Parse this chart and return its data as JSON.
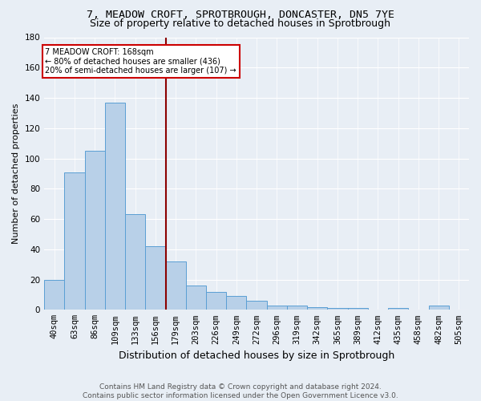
{
  "title1": "7, MEADOW CROFT, SPROTBROUGH, DONCASTER, DN5 7YE",
  "title2": "Size of property relative to detached houses in Sprotbrough",
  "xlabel": "Distribution of detached houses by size in Sprotbrough",
  "ylabel": "Number of detached properties",
  "bar_labels": [
    "40sqm",
    "63sqm",
    "86sqm",
    "109sqm",
    "133sqm",
    "156sqm",
    "179sqm",
    "203sqm",
    "226sqm",
    "249sqm",
    "272sqm",
    "296sqm",
    "319sqm",
    "342sqm",
    "365sqm",
    "389sqm",
    "412sqm",
    "435sqm",
    "458sqm",
    "482sqm",
    "505sqm"
  ],
  "bar_values": [
    20,
    91,
    105,
    137,
    63,
    42,
    32,
    16,
    12,
    9,
    6,
    3,
    3,
    2,
    1,
    1,
    0,
    1,
    0,
    3,
    0
  ],
  "bar_color": "#b8d0e8",
  "bar_edge_color": "#5a9fd4",
  "bg_color": "#e8eef5",
  "plot_bg_color": "#e8eef5",
  "grid_color": "#ffffff",
  "red_line_x": 5.5,
  "red_line_color": "#8b0000",
  "annotation_text": "7 MEADOW CROFT: 168sqm\n← 80% of detached houses are smaller (436)\n20% of semi-detached houses are larger (107) →",
  "annotation_box_color": "#ffffff",
  "annotation_box_edge": "#cc0000",
  "ylim": [
    0,
    180
  ],
  "yticks": [
    0,
    20,
    40,
    60,
    80,
    100,
    120,
    140,
    160,
    180
  ],
  "footer1": "Contains HM Land Registry data © Crown copyright and database right 2024.",
  "footer2": "Contains public sector information licensed under the Open Government Licence v3.0.",
  "title1_fontsize": 9.5,
  "title2_fontsize": 9,
  "xlabel_fontsize": 9,
  "ylabel_fontsize": 8,
  "tick_fontsize": 7.5,
  "footer_fontsize": 6.5
}
